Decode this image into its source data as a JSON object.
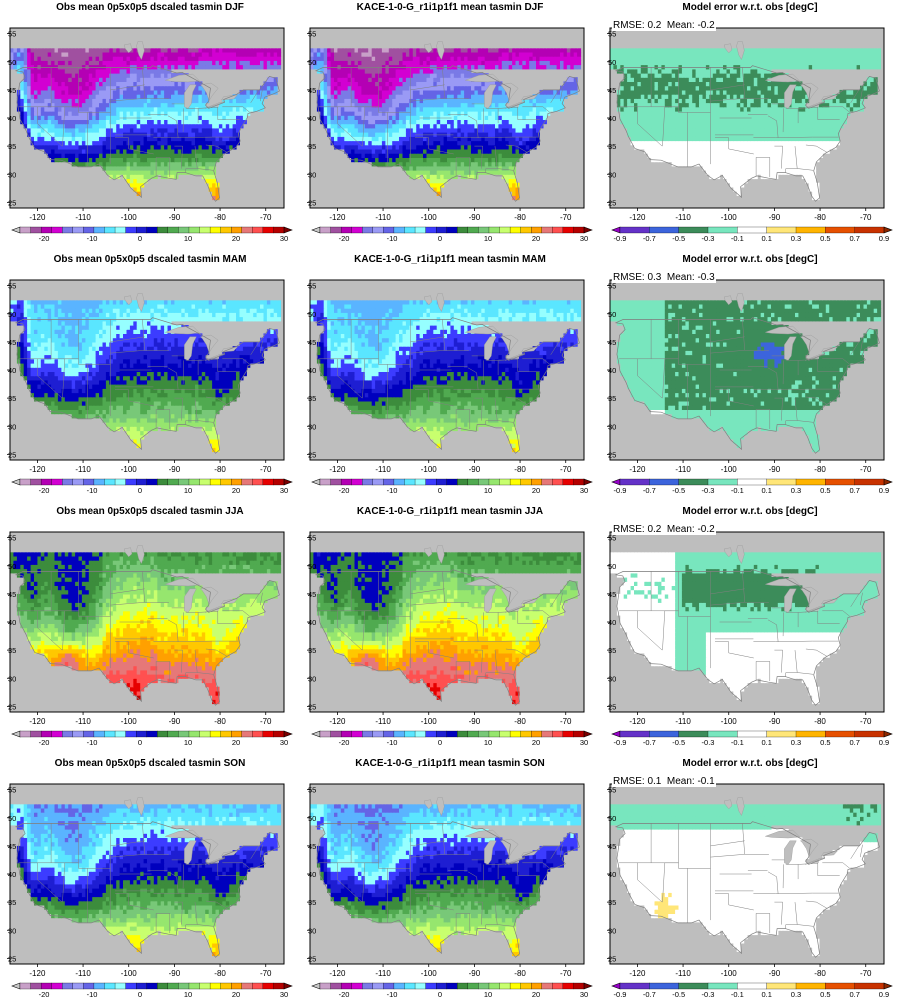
{
  "seasons": [
    "DJF",
    "MAM",
    "JJA",
    "SON"
  ],
  "columns": [
    {
      "kind": "obs"
    },
    {
      "kind": "model"
    },
    {
      "kind": "error"
    }
  ],
  "panels": [
    {
      "title": "Obs mean 0p5x0p5 dscaled tasmin DJF",
      "kind": "obs",
      "season": "DJF"
    },
    {
      "title": "KACE-1-0-G_r1i1p1f1 mean tasmin DJF",
      "kind": "model",
      "season": "DJF"
    },
    {
      "title": "Model error w.r.t. obs [degC]",
      "kind": "error",
      "season": "DJF",
      "stats": "RMSE: 0.2  Mean: -0.2"
    },
    {
      "title": "Obs mean 0p5x0p5 dscaled tasmin MAM",
      "kind": "obs",
      "season": "MAM"
    },
    {
      "title": "KACE-1-0-G_r1i1p1f1 mean tasmin MAM",
      "kind": "model",
      "season": "MAM"
    },
    {
      "title": "Model error w.r.t. obs [degC]",
      "kind": "error",
      "season": "MAM",
      "stats": "RMSE: 0.3  Mean: -0.3"
    },
    {
      "title": "Obs mean 0p5x0p5 dscaled tasmin JJA",
      "kind": "obs",
      "season": "JJA"
    },
    {
      "title": "KACE-1-0-G_r1i1p1f1 mean tasmin JJA",
      "kind": "model",
      "season": "JJA"
    },
    {
      "title": "Model error w.r.t. obs [degC]",
      "kind": "error",
      "season": "JJA",
      "stats": "RMSE: 0.2  Mean: -0.2"
    },
    {
      "title": "Obs mean 0p5x0p5 dscaled tasmin SON",
      "kind": "obs",
      "season": "SON"
    },
    {
      "title": "KACE-1-0-G_r1i1p1f1 mean tasmin SON",
      "kind": "model",
      "season": "SON"
    },
    {
      "title": "Model error w.r.t. obs [degC]",
      "kind": "error",
      "season": "SON",
      "stats": "RMSE: 0.1  Mean: -0.1"
    }
  ],
  "map_axes": {
    "lon_range": [
      -126,
      -66
    ],
    "lat_range": [
      24,
      56
    ],
    "lon_ticks": [
      -120,
      -110,
      -100,
      -90,
      -80,
      -70
    ],
    "lat_ticks": [
      25,
      30,
      35,
      40,
      45,
      50,
      55
    ]
  },
  "temperature_colorbar": {
    "labels": [
      "-20",
      "-10",
      "0",
      "10",
      "20",
      "30"
    ],
    "label_values": [
      -20,
      -10,
      0,
      10,
      20,
      30
    ],
    "min": -25,
    "max": 30,
    "colors": [
      "#c8c8c8",
      "#c8a0c8",
      "#a050a0",
      "#b400b4",
      "#d200d2",
      "#7a7ae6",
      "#9a9af5",
      "#6464e6",
      "#5ab4ff",
      "#5ae6ff",
      "#96ffff",
      "#3c3cff",
      "#1e1ed2",
      "#0000be",
      "#3c8c3c",
      "#50aa50",
      "#78c878",
      "#96e66e",
      "#c8ff6e",
      "#ffff00",
      "#ffc800",
      "#ffa000",
      "#e67878",
      "#ff5050",
      "#e60000",
      "#b40000",
      "#780000"
    ]
  },
  "error_colorbar": {
    "labels": [
      "-0.9",
      "-0.7",
      "-0.5",
      "-0.3",
      "-0.1",
      "0.1",
      "0.3",
      "0.5",
      "0.7",
      "0.9"
    ],
    "colors": [
      "#9600c8",
      "#6432c8",
      "#3c64dc",
      "#3c8c5a",
      "#78e6be",
      "#ffffff",
      "#ffe678",
      "#ffb400",
      "#e65000",
      "#c83200",
      "#8c2800"
    ]
  },
  "colors": {
    "land_mask": "#bebebe",
    "ocean": "#bebebe",
    "water": "#bebebe",
    "border": "#808080"
  }
}
